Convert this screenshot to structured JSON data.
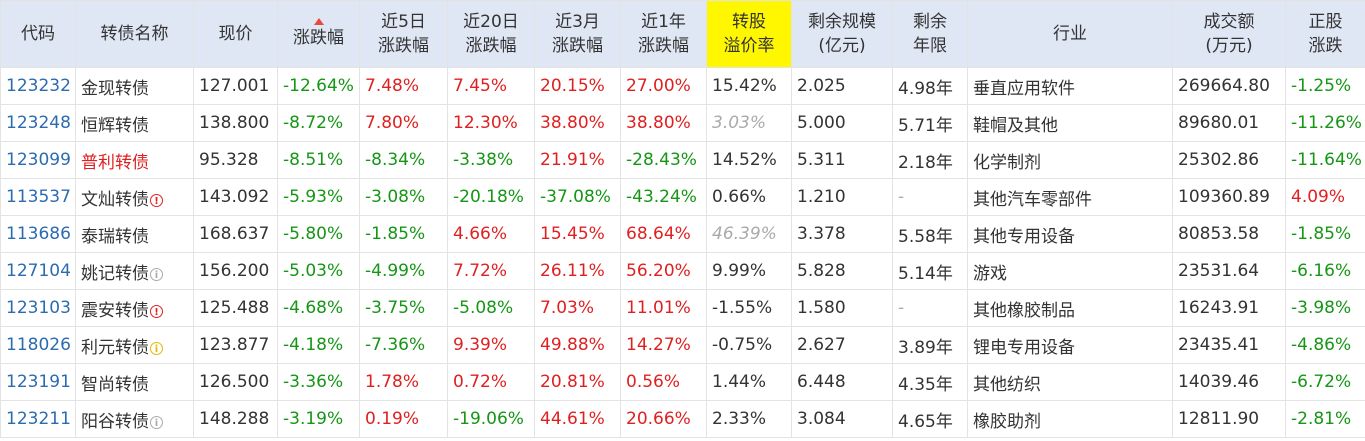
{
  "headers": {
    "code": "代码",
    "name": "转债名称",
    "price": "现价",
    "change": "涨跌幅",
    "chg5d_1": "近5日",
    "chg5d_2": "涨跌幅",
    "chg20d_1": "近20日",
    "chg20d_2": "涨跌幅",
    "chg3m_1": "近3月",
    "chg3m_2": "涨跌幅",
    "chg1y_1": "近1年",
    "chg1y_2": "涨跌幅",
    "premium_1": "转股",
    "premium_2": "溢价率",
    "remaining_1": "剩余规模",
    "remaining_2": "(亿元)",
    "years_1": "剩余",
    "years_2": "年限",
    "industry": "行业",
    "turnover_1": "成交额",
    "turnover_2": "(万元)",
    "stock_1": "正股",
    "stock_2": "涨跌"
  },
  "sort": {
    "column": "涨跌幅",
    "direction": "desc",
    "indicator_color": "#e8493c"
  },
  "colors": {
    "up": "#e02020",
    "down": "#159615",
    "code": "#2b6cb0",
    "header_bg": "#dfe7f4",
    "highlight_header": "#fff700"
  },
  "rows": [
    {
      "code": "123232",
      "name": "金现转债",
      "badge": "",
      "price": "127.001",
      "change": "-12.64%",
      "chg5d": "7.48%",
      "chg20d": "7.45%",
      "chg3m": "20.15%",
      "chg1y": "27.00%",
      "premium": "15.42%",
      "remaining": "2.025",
      "years": "4.98年",
      "industry": "垂直应用软件",
      "turnover": "269664.80",
      "stock_change": "-1.25%"
    },
    {
      "code": "123248",
      "name": "恒辉转债",
      "badge": "",
      "price": "138.800",
      "change": "-8.72%",
      "chg5d": "7.80%",
      "chg20d": "12.30%",
      "chg3m": "38.80%",
      "chg1y": "38.80%",
      "premium": "3.03%",
      "remaining": "5.000",
      "years": "5.71年",
      "industry": "鞋帽及其他",
      "turnover": "89680.01",
      "stock_change": "-11.26%"
    },
    {
      "code": "123099",
      "name": "普利转债",
      "badge": "",
      "price": "95.328",
      "change": "-8.51%",
      "chg5d": "-8.34%",
      "chg20d": "-3.38%",
      "chg3m": "21.91%",
      "chg1y": "-28.43%",
      "premium": "14.52%",
      "remaining": "5.311",
      "years": "2.18年",
      "industry": "化学制剂",
      "turnover": "25302.86",
      "stock_change": "-11.64%"
    },
    {
      "code": "113537",
      "name": "文灿转债",
      "badge": "!",
      "price": "143.092",
      "change": "-5.93%",
      "chg5d": "-3.08%",
      "chg20d": "-20.18%",
      "chg3m": "-37.08%",
      "chg1y": "-43.24%",
      "premium": "0.66%",
      "remaining": "1.210",
      "years": "-",
      "industry": "其他汽车零部件",
      "turnover": "109360.89",
      "stock_change": "4.09%"
    },
    {
      "code": "113686",
      "name": "泰瑞转债",
      "badge": "",
      "price": "168.637",
      "change": "-5.80%",
      "chg5d": "-1.85%",
      "chg20d": "4.66%",
      "chg3m": "15.45%",
      "chg1y": "68.64%",
      "premium": "46.39%",
      "remaining": "3.378",
      "years": "5.58年",
      "industry": "其他专用设备",
      "turnover": "80853.58",
      "stock_change": "-1.85%"
    },
    {
      "code": "127104",
      "name": "姚记转债",
      "badge": "i",
      "price": "156.200",
      "change": "-5.03%",
      "chg5d": "-4.99%",
      "chg20d": "7.72%",
      "chg3m": "26.11%",
      "chg1y": "56.20%",
      "premium": "9.99%",
      "remaining": "5.828",
      "years": "5.14年",
      "industry": "游戏",
      "turnover": "23531.64",
      "stock_change": "-6.16%"
    },
    {
      "code": "123103",
      "name": "震安转债",
      "badge": "!",
      "price": "125.488",
      "change": "-4.68%",
      "chg5d": "-3.75%",
      "chg20d": "-5.08%",
      "chg3m": "7.03%",
      "chg1y": "11.01%",
      "premium": "-1.55%",
      "remaining": "1.580",
      "years": "-",
      "industry": "其他橡胶制品",
      "turnover": "16243.91",
      "stock_change": "-3.98%"
    },
    {
      "code": "118026",
      "name": "利元转债",
      "badge": "i",
      "price": "123.877",
      "change": "-4.18%",
      "chg5d": "-7.36%",
      "chg20d": "9.39%",
      "chg3m": "49.88%",
      "chg1y": "14.27%",
      "premium": "-0.75%",
      "remaining": "2.627",
      "years": "3.89年",
      "industry": "锂电专用设备",
      "turnover": "23435.41",
      "stock_change": "-4.86%"
    },
    {
      "code": "123191",
      "name": "智尚转债",
      "badge": "",
      "price": "126.500",
      "change": "-3.36%",
      "chg5d": "1.78%",
      "chg20d": "0.72%",
      "chg3m": "20.81%",
      "chg1y": "0.56%",
      "premium": "1.44%",
      "remaining": "6.448",
      "years": "4.35年",
      "industry": "其他纺织",
      "turnover": "14039.46",
      "stock_change": "-6.72%"
    },
    {
      "code": "123211",
      "name": "阳谷转债",
      "badge": "i",
      "price": "148.288",
      "change": "-3.19%",
      "chg5d": "0.19%",
      "chg20d": "-19.06%",
      "chg3m": "44.61%",
      "chg1y": "20.66%",
      "premium": "2.33%",
      "remaining": "3.084",
      "years": "4.65年",
      "industry": "橡胶助剂",
      "turnover": "12811.90",
      "stock_change": "-2.81%"
    }
  ]
}
